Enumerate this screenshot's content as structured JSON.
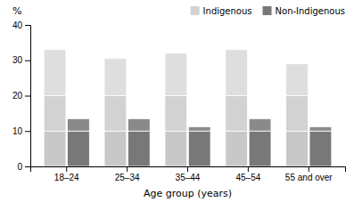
{
  "chart_data": {
    "type": "bar",
    "stacked": true,
    "categories": [
      "18–24",
      "25–34",
      "35–44",
      "45–54",
      "55 and over"
    ],
    "series": [
      {
        "name": "Indigenous",
        "color": "#d2d2d2",
        "segments": [
          {
            "color": "#c8c8c8",
            "values": [
              10,
              10,
              10,
              10,
              10
            ]
          },
          {
            "color": "#d2d2d2",
            "values": [
              10,
              10,
              10,
              10,
              10
            ]
          },
          {
            "color": "#dedede",
            "values": [
              13,
              10.5,
              12,
              13,
              9
            ]
          }
        ]
      },
      {
        "name": "Non-Indigenous",
        "color": "#787878",
        "segments": [
          {
            "color": "#787878",
            "values": [
              10,
              10,
              10,
              10,
              10
            ]
          },
          {
            "color": "#8a8a8a",
            "values": [
              3.5,
              3.5,
              1.2,
              3.5,
              1.2
            ]
          }
        ]
      }
    ],
    "xlabel": "Age group (years)",
    "ylabel": "%",
    "ylim": [
      0,
      40
    ],
    "yticks": [
      0,
      10,
      20,
      30,
      40
    ],
    "grid": false,
    "legend": "upper right"
  }
}
